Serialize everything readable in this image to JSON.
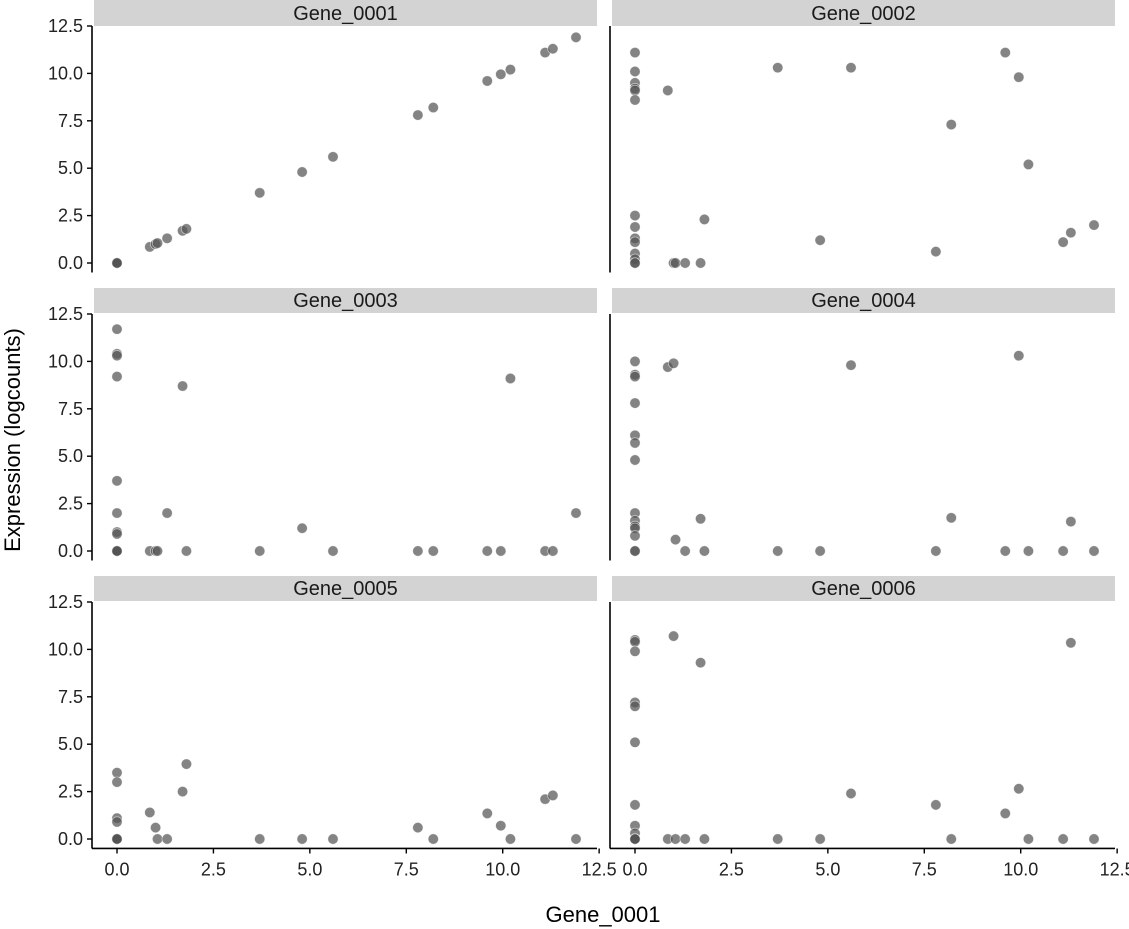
{
  "chart_data": {
    "type": "scatter",
    "title": "",
    "xlabel": "Gene_0001",
    "ylabel": "Expression (logcounts)",
    "xlim": [
      -0.6,
      12.6
    ],
    "ylim": [
      -0.5,
      12.5
    ],
    "xticks": [
      0,
      2.5,
      5,
      7.5,
      10,
      12.5
    ],
    "xtick_labels": [
      "0.0",
      "2.5",
      "5.0",
      "7.5",
      "10.0",
      "12.5"
    ],
    "yticks": [
      0,
      2.5,
      5,
      7.5,
      10,
      12.5
    ],
    "ytick_labels": [
      "0.0",
      "2.5",
      "5.0",
      "7.5",
      "10.0",
      "12.5"
    ],
    "point_color": "#555555",
    "strip_color": "#d3d3d3",
    "x": [
      0,
      0,
      0,
      0,
      0,
      0,
      0,
      0,
      0,
      0,
      0,
      0,
      0,
      0,
      0.85,
      1,
      1.05,
      1.3,
      1.7,
      1.8,
      3.7,
      4.8,
      5.6,
      7.8,
      8.2,
      9.6,
      9.95,
      10.2,
      11.1,
      11.3,
      11.9
    ],
    "panels": [
      {
        "name": "Gene_0001",
        "y": [
          0,
          0,
          0,
          0,
          0,
          0,
          0,
          0,
          0,
          0,
          0,
          0,
          0,
          0,
          0.85,
          1.0,
          1.05,
          1.3,
          1.7,
          1.8,
          3.7,
          4.8,
          5.6,
          7.8,
          8.2,
          9.6,
          9.95,
          10.2,
          11.1,
          11.3,
          11.9
        ]
      },
      {
        "name": "Gene_0002",
        "y": [
          11.1,
          10.1,
          9.5,
          9.2,
          9.1,
          8.6,
          2.5,
          1.9,
          1.3,
          1.1,
          0.5,
          0.2,
          0,
          0,
          9.1,
          0,
          0,
          0,
          0,
          2.3,
          10.3,
          1.2,
          10.3,
          0.6,
          7.3,
          11.1,
          9.8,
          5.2,
          1.1,
          1.6,
          2.0
        ]
      },
      {
        "name": "Gene_0003",
        "y": [
          11.7,
          10.4,
          10.3,
          9.2,
          3.7,
          2.0,
          1.0,
          0.9,
          0,
          0,
          0,
          0,
          0,
          0,
          0,
          0,
          0,
          2.0,
          8.7,
          0,
          0,
          1.2,
          0,
          0,
          0,
          0,
          0,
          9.1,
          0,
          0,
          2.0
        ]
      },
      {
        "name": "Gene_0004",
        "y": [
          10.0,
          9.3,
          9.2,
          7.8,
          6.1,
          5.7,
          4.8,
          2.0,
          1.6,
          1.3,
          1.2,
          0.8,
          0,
          0,
          9.7,
          9.9,
          0.6,
          0,
          1.7,
          0,
          0,
          0,
          9.8,
          0,
          1.75,
          0,
          10.3,
          0,
          0,
          1.55,
          0
        ]
      },
      {
        "name": "Gene_0005",
        "y": [
          3.5,
          3.0,
          1.1,
          0.9,
          0,
          0,
          0,
          0,
          0,
          0,
          0,
          0,
          0,
          0,
          1.4,
          0.6,
          0,
          0,
          2.5,
          3.95,
          0,
          0,
          0,
          0.6,
          0,
          1.35,
          0.7,
          0,
          2.1,
          2.3,
          0
        ]
      },
      {
        "name": "Gene_0006",
        "y": [
          10.5,
          10.4,
          9.9,
          7.2,
          7.0,
          5.1,
          1.8,
          0.7,
          0.3,
          0,
          0,
          0,
          0,
          0,
          0,
          10.7,
          0,
          0,
          9.3,
          0,
          0,
          0,
          2.4,
          1.8,
          0,
          1.35,
          2.65,
          0,
          0,
          10.35,
          0
        ]
      }
    ]
  }
}
